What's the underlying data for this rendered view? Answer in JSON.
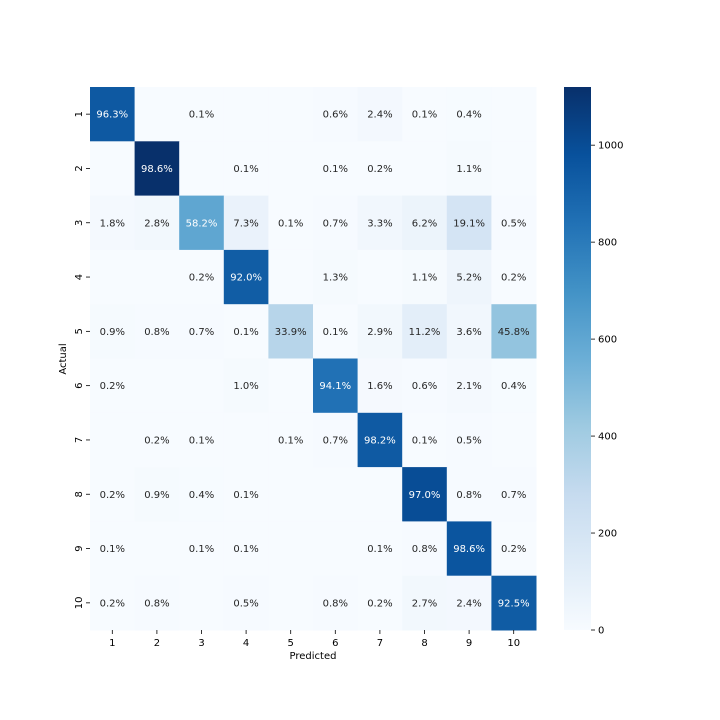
{
  "chart_data": {
    "type": "heatmap",
    "title": "",
    "xlabel": "Predicted",
    "ylabel": "Actual",
    "x_categories": [
      "1",
      "2",
      "3",
      "4",
      "5",
      "6",
      "7",
      "8",
      "9",
      "10"
    ],
    "y_categories": [
      "1",
      "2",
      "3",
      "4",
      "5",
      "6",
      "7",
      "8",
      "9",
      "10"
    ],
    "cell_labels": [
      [
        "96.3%",
        "",
        "0.1%",
        "",
        "",
        "0.6%",
        "2.4%",
        "0.1%",
        "0.4%",
        ""
      ],
      [
        "",
        "98.6%",
        "",
        "0.1%",
        "",
        "0.1%",
        "0.2%",
        "",
        "1.1%",
        ""
      ],
      [
        "1.8%",
        "2.8%",
        "58.2%",
        "7.3%",
        "0.1%",
        "0.7%",
        "3.3%",
        "6.2%",
        "19.1%",
        "0.5%"
      ],
      [
        "",
        "",
        "0.2%",
        "92.0%",
        "",
        "1.3%",
        "",
        "1.1%",
        "5.2%",
        "0.2%"
      ],
      [
        "0.9%",
        "0.8%",
        "0.7%",
        "0.1%",
        "33.9%",
        "0.1%",
        "2.9%",
        "11.2%",
        "3.6%",
        "45.8%"
      ],
      [
        "0.2%",
        "",
        "",
        "1.0%",
        "",
        "94.1%",
        "1.6%",
        "0.6%",
        "2.1%",
        "0.4%"
      ],
      [
        "",
        "0.2%",
        "0.1%",
        "",
        "0.1%",
        "0.7%",
        "98.2%",
        "0.1%",
        "0.5%",
        ""
      ],
      [
        "0.2%",
        "0.9%",
        "0.4%",
        "0.1%",
        "",
        "",
        "",
        "97.0%",
        "0.8%",
        "0.7%"
      ],
      [
        "0.1%",
        "",
        "0.1%",
        "0.1%",
        "",
        "",
        "0.1%",
        "0.8%",
        "98.6%",
        "0.2%"
      ],
      [
        "0.2%",
        "0.8%",
        "",
        "0.5%",
        "",
        "0.8%",
        "0.2%",
        "2.7%",
        "2.4%",
        "92.5%"
      ]
    ],
    "counts": [
      [
        944,
        0,
        1,
        0,
        0,
        6,
        24,
        1,
        4,
        0
      ],
      [
        0,
        1120,
        0,
        1,
        0,
        1,
        2,
        0,
        12,
        0
      ],
      [
        19,
        29,
        601,
        75,
        1,
        7,
        34,
        64,
        197,
        5
      ],
      [
        0,
        0,
        2,
        929,
        0,
        13,
        0,
        11,
        53,
        2
      ],
      [
        9,
        8,
        7,
        1,
        333,
        1,
        28,
        110,
        35,
        450
      ],
      [
        2,
        0,
        0,
        9,
        0,
        839,
        14,
        5,
        19,
        4
      ],
      [
        0,
        2,
        1,
        0,
        1,
        7,
        941,
        1,
        5,
        0
      ],
      [
        2,
        9,
        4,
        1,
        0,
        0,
        0,
        997,
        8,
        7
      ],
      [
        1,
        0,
        1,
        1,
        0,
        0,
        1,
        8,
        961,
        2
      ],
      [
        2,
        8,
        0,
        5,
        0,
        8,
        2,
        27,
        24,
        933
      ]
    ],
    "colorscale": {
      "name": "Blues",
      "min": 0,
      "max": 1120
    },
    "colorbar": {
      "ticks": [
        0,
        200,
        400,
        600,
        800,
        1000
      ]
    }
  }
}
